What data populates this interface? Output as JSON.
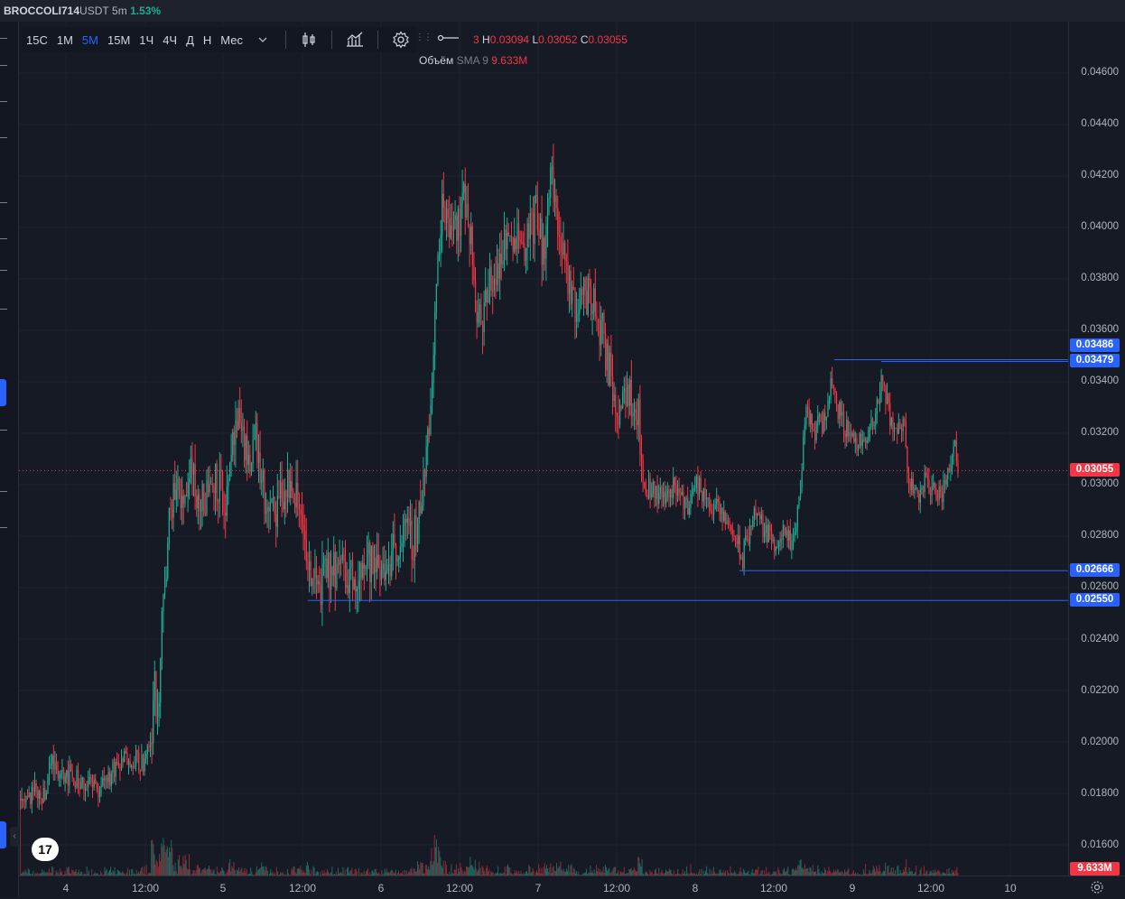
{
  "header": {
    "symbol": "BROCCOLI714",
    "quote": "USDT",
    "interval": "5m",
    "change": "1.53%",
    "change_color": "#22ab94"
  },
  "toolbar": {
    "timeframes": [
      "15С",
      "1М",
      "5М",
      "15М",
      "1Ч",
      "4Ч",
      "Д",
      "Н",
      "Мес"
    ],
    "active_timeframe": "5М",
    "icons": [
      "chevron-down-icon",
      "candles-icon",
      "indicators-icon",
      "settings-icon"
    ]
  },
  "ohlc": {
    "o_suffix": "3",
    "h_label": "H",
    "h_value": "0.03094",
    "l_label": "L",
    "l_value": "0.03052",
    "c_label": "C",
    "c_value": "0.03055"
  },
  "volume": {
    "title": "Объём",
    "ma": "SMA 9",
    "value": "9.633M"
  },
  "colors": {
    "up": "#22ab94",
    "down": "#f23645",
    "level_line": "#2962ff",
    "background": "#161a25"
  },
  "price_axis": [
    "0.04600",
    "0.04400",
    "0.04200",
    "0.04000",
    "0.03800",
    "0.03600",
    "0.03400",
    "0.03200",
    "0.03000",
    "0.02800",
    "0.02600",
    "0.02400",
    "0.02200",
    "0.02000",
    "0.01800",
    "0.01600"
  ],
  "tags": {
    "level1": "0.03486",
    "level2": "0.03479",
    "current": "0.03055",
    "level3": "0.02666",
    "level4": "0.02550",
    "volume": "9.633M"
  },
  "time_axis": [
    "4",
    "12:00",
    "5",
    "12:00",
    "6",
    "12:00",
    "7",
    "12:00",
    "8",
    "12:00",
    "9",
    "12:00",
    "10"
  ],
  "chart_data": {
    "type": "candlestick",
    "symbol": "BROCCOLI714USDT",
    "interval": "5m",
    "ylim": [
      0.015,
      0.047
    ],
    "anchors": [
      [
        0,
        0.0178
      ],
      [
        30,
        0.0181
      ],
      [
        35,
        0.0192
      ],
      [
        60,
        0.0186
      ],
      [
        85,
        0.0182
      ],
      [
        110,
        0.019
      ],
      [
        120,
        0.0195
      ],
      [
        140,
        0.0192
      ],
      [
        146,
        0.02
      ],
      [
        149,
        0.0225
      ],
      [
        152,
        0.0205
      ],
      [
        158,
        0.0245
      ],
      [
        164,
        0.0275
      ],
      [
        170,
        0.03
      ],
      [
        180,
        0.0292
      ],
      [
        190,
        0.031
      ],
      [
        200,
        0.029
      ],
      [
        215,
        0.0305
      ],
      [
        230,
        0.0292
      ],
      [
        240,
        0.0325
      ],
      [
        250,
        0.031
      ],
      [
        262,
        0.0318
      ],
      [
        275,
        0.0285
      ],
      [
        290,
        0.0295
      ],
      [
        300,
        0.03
      ],
      [
        310,
        0.029
      ],
      [
        318,
        0.0278
      ],
      [
        322,
        0.026
      ],
      [
        335,
        0.0262
      ],
      [
        350,
        0.0268
      ],
      [
        365,
        0.0264
      ],
      [
        385,
        0.027
      ],
      [
        400,
        0.0266
      ],
      [
        415,
        0.0275
      ],
      [
        425,
        0.028
      ],
      [
        435,
        0.0278
      ],
      [
        440,
        0.0283
      ],
      [
        450,
        0.031
      ],
      [
        458,
        0.034
      ],
      [
        462,
        0.038
      ],
      [
        468,
        0.041
      ],
      [
        475,
        0.0405
      ],
      [
        485,
        0.0402
      ],
      [
        495,
        0.0412
      ],
      [
        505,
        0.0375
      ],
      [
        512,
        0.036
      ],
      [
        520,
        0.0378
      ],
      [
        530,
        0.0385
      ],
      [
        545,
        0.04
      ],
      [
        560,
        0.0395
      ],
      [
        572,
        0.0405
      ],
      [
        580,
        0.039
      ],
      [
        585,
        0.0408
      ],
      [
        590,
        0.042
      ],
      [
        598,
        0.0395
      ],
      [
        605,
        0.038
      ],
      [
        615,
        0.037
      ],
      [
        630,
        0.0375
      ],
      [
        645,
        0.036
      ],
      [
        655,
        0.034
      ],
      [
        662,
        0.033
      ],
      [
        672,
        0.034
      ],
      [
        685,
        0.033
      ],
      [
        690,
        0.03
      ],
      [
        700,
        0.0298
      ],
      [
        715,
        0.0295
      ],
      [
        725,
        0.03
      ],
      [
        740,
        0.0292
      ],
      [
        750,
        0.03
      ],
      [
        760,
        0.0295
      ],
      [
        772,
        0.029
      ],
      [
        785,
        0.0285
      ],
      [
        795,
        0.0278
      ],
      [
        800,
        0.027
      ],
      [
        810,
        0.0285
      ],
      [
        815,
        0.029
      ],
      [
        825,
        0.0282
      ],
      [
        835,
        0.0278
      ],
      [
        845,
        0.028
      ],
      [
        858,
        0.0276
      ],
      [
        866,
        0.0305
      ],
      [
        872,
        0.033
      ],
      [
        880,
        0.032
      ],
      [
        890,
        0.0325
      ],
      [
        900,
        0.034
      ],
      [
        910,
        0.0325
      ],
      [
        920,
        0.032
      ],
      [
        935,
        0.0315
      ],
      [
        948,
        0.0325
      ],
      [
        956,
        0.0342
      ],
      [
        962,
        0.033
      ],
      [
        970,
        0.032
      ],
      [
        980,
        0.0325
      ],
      [
        985,
        0.03
      ],
      [
        995,
        0.0296
      ],
      [
        1005,
        0.0302
      ],
      [
        1015,
        0.0296
      ],
      [
        1025,
        0.0298
      ],
      [
        1032,
        0.0312
      ],
      [
        1035,
        0.0316
      ],
      [
        1040,
        0.0305
      ]
    ],
    "horizontal_levels": [
      {
        "price": 0.03486,
        "from_x": 903
      },
      {
        "price": 0.03479,
        "from_x": 955
      },
      {
        "price": 0.02666,
        "from_x": 798
      },
      {
        "price": 0.0255,
        "from_x": 320
      }
    ],
    "current_price": 0.03055,
    "x_labels": [
      "4",
      "12:00",
      "5",
      "12:00",
      "6",
      "12:00",
      "7",
      "12:00",
      "8",
      "12:00",
      "9",
      "12:00",
      "10"
    ]
  }
}
